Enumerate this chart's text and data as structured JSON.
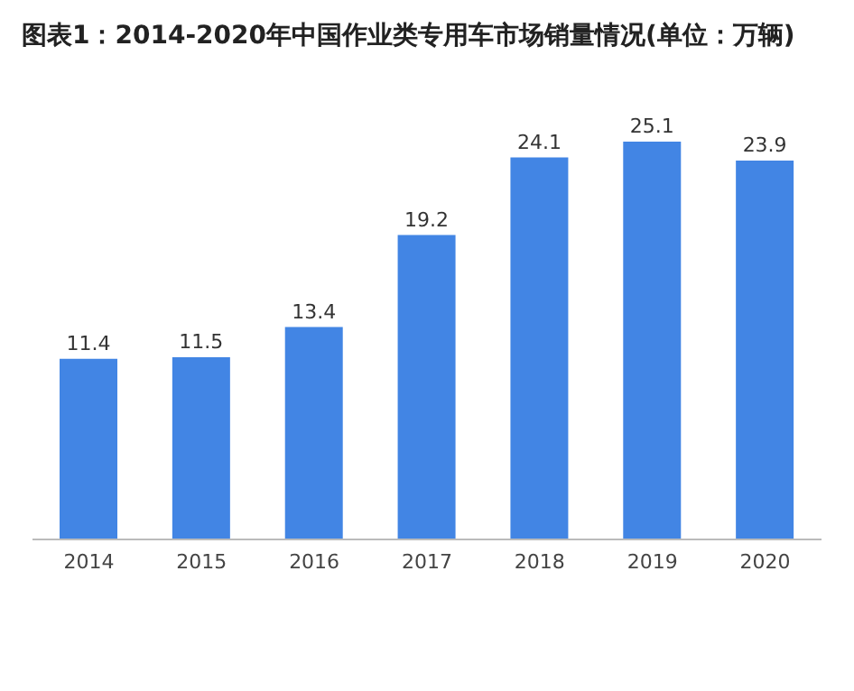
{
  "chart_data": {
    "type": "bar",
    "title": "图表1：2014-2020年中国作业类专用车市场销量情况(单位：万辆)",
    "categories": [
      "2014",
      "2015",
      "2016",
      "2017",
      "2018",
      "2019",
      "2020"
    ],
    "values": [
      11.4,
      11.5,
      13.4,
      19.2,
      24.1,
      25.1,
      23.9
    ],
    "color": "#4285e4",
    "data_labels": true,
    "tick_labels": "x",
    "grid": false,
    "legend": false
  }
}
